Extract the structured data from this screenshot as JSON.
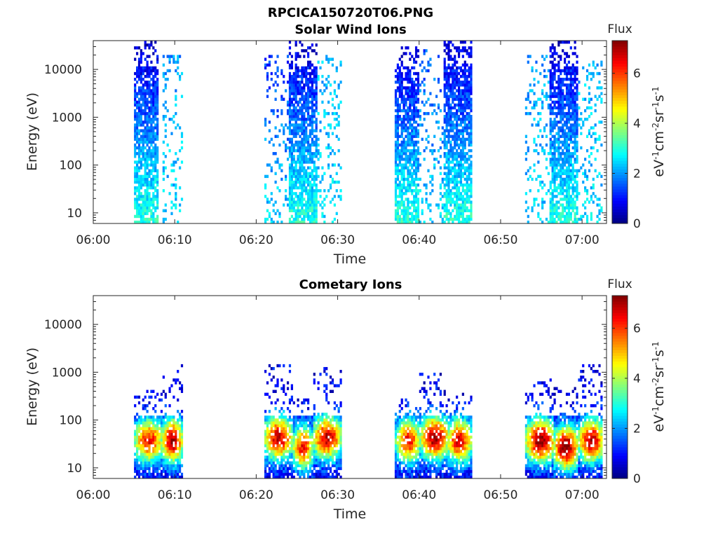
{
  "figure_title": "RPCICA150720T06.PNG",
  "chart_data": [
    {
      "type": "heatmap",
      "title": "Solar Wind Ions",
      "xlabel": "Time",
      "ylabel": "Energy (eV)",
      "x_ticks": [
        "06:00",
        "06:10",
        "06:20",
        "06:30",
        "06:40",
        "06:50",
        "07:00"
      ],
      "x_tick_minutes": [
        0,
        10,
        20,
        30,
        40,
        50,
        60
      ],
      "xlim_minutes": [
        0,
        63
      ],
      "y_scale": "log",
      "y_ticks": [
        "10",
        "100",
        "1000",
        "10000"
      ],
      "y_tick_values": [
        10,
        100,
        1000,
        10000
      ],
      "ylim": [
        6,
        40000
      ],
      "colorbar": {
        "title": "Flux",
        "label": "eV-1cm-2sr-1s-1",
        "range": [
          0,
          7.3
        ],
        "ticks": [
          "0",
          "2",
          "4",
          "6"
        ],
        "tick_values": [
          0,
          2,
          4,
          6
        ],
        "colormap": "jet"
      },
      "bursts": [
        {
          "start_min": 5,
          "end_min": 8,
          "max_energy_ev": 38000,
          "flux_low_energy": 3.0,
          "flux_high_energy": 0.6
        },
        {
          "start_min": 8.5,
          "end_min": 11,
          "max_energy_ev": 20000,
          "flux_low_energy": 2.5,
          "flux_high_energy": 2.0,
          "sparse": true
        },
        {
          "start_min": 21,
          "end_min": 24,
          "max_energy_ev": 20000,
          "flux_low_energy": 2.5,
          "flux_high_energy": 1.2,
          "sparse": true
        },
        {
          "start_min": 24,
          "end_min": 27.5,
          "max_energy_ev": 38000,
          "flux_low_energy": 3.0,
          "flux_high_energy": 0.6
        },
        {
          "start_min": 27.5,
          "end_min": 30.5,
          "max_energy_ev": 20000,
          "flux_low_energy": 2.5,
          "flux_high_energy": 2.2,
          "sparse": true
        },
        {
          "start_min": 37,
          "end_min": 40,
          "max_energy_ev": 30000,
          "flux_low_energy": 3.0,
          "flux_high_energy": 0.6
        },
        {
          "start_min": 40,
          "end_min": 43,
          "max_energy_ev": 25000,
          "flux_low_energy": 2.5,
          "flux_high_energy": 1.5,
          "sparse": true
        },
        {
          "start_min": 43,
          "end_min": 46.5,
          "max_energy_ev": 38000,
          "flux_low_energy": 3.0,
          "flux_high_energy": 0.6
        },
        {
          "start_min": 53,
          "end_min": 56,
          "max_energy_ev": 20000,
          "flux_low_energy": 2.5,
          "flux_high_energy": 2.0,
          "sparse": true
        },
        {
          "start_min": 56,
          "end_min": 59.5,
          "max_energy_ev": 38000,
          "flux_low_energy": 3.0,
          "flux_high_energy": 0.6
        },
        {
          "start_min": 59.5,
          "end_min": 62.5,
          "max_energy_ev": 15000,
          "flux_low_energy": 2.5,
          "flux_high_energy": 2.2,
          "sparse": true
        }
      ]
    },
    {
      "type": "heatmap",
      "title": "Cometary Ions",
      "xlabel": "Time",
      "ylabel": "Energy (eV)",
      "x_ticks": [
        "06:00",
        "06:10",
        "06:20",
        "06:30",
        "06:40",
        "06:50",
        "07:00"
      ],
      "x_tick_minutes": [
        0,
        10,
        20,
        30,
        40,
        50,
        60
      ],
      "xlim_minutes": [
        0,
        63
      ],
      "y_scale": "log",
      "y_ticks": [
        "10",
        "100",
        "1000",
        "10000"
      ],
      "y_tick_values": [
        10,
        100,
        1000,
        10000
      ],
      "ylim": [
        6,
        40000
      ],
      "colorbar": {
        "title": "Flux",
        "label": "eV-1cm-2sr-1s-1",
        "range": [
          0,
          7.3
        ],
        "ticks": [
          "0",
          "2",
          "4",
          "6"
        ],
        "tick_values": [
          0,
          2,
          4,
          6
        ],
        "colormap": "jet"
      },
      "bursts": [
        {
          "start_min": 5,
          "end_min": 8.5,
          "peak_min": 6.7,
          "peak_energy_ev": 35,
          "peak_flux": 5.5,
          "max_energy_ev": 400
        },
        {
          "start_min": 8.5,
          "end_min": 11,
          "peak_min": 9.6,
          "peak_energy_ev": 35,
          "peak_flux": 6.3,
          "max_energy_ev": 1500
        },
        {
          "start_min": 21,
          "end_min": 24.5,
          "peak_min": 22.6,
          "peak_energy_ev": 40,
          "peak_flux": 6.0,
          "max_energy_ev": 1400
        },
        {
          "start_min": 24.5,
          "end_min": 27,
          "peak_min": 25.6,
          "peak_energy_ev": 25,
          "peak_flux": 5.5,
          "max_energy_ev": 300
        },
        {
          "start_min": 27,
          "end_min": 30.5,
          "peak_min": 28.6,
          "peak_energy_ev": 40,
          "peak_flux": 6.0,
          "max_energy_ev": 1200
        },
        {
          "start_min": 37,
          "end_min": 40,
          "peak_min": 38.6,
          "peak_energy_ev": 35,
          "peak_flux": 5.5,
          "max_energy_ev": 300
        },
        {
          "start_min": 40,
          "end_min": 43.5,
          "peak_min": 41.8,
          "peak_energy_ev": 40,
          "peak_flux": 6.3,
          "max_energy_ev": 1000
        },
        {
          "start_min": 43.5,
          "end_min": 46.5,
          "peak_min": 44.8,
          "peak_energy_ev": 35,
          "peak_flux": 5.8,
          "max_energy_ev": 400
        },
        {
          "start_min": 53,
          "end_min": 56.5,
          "peak_min": 54.8,
          "peak_energy_ev": 35,
          "peak_flux": 6.6,
          "max_energy_ev": 700
        },
        {
          "start_min": 56.5,
          "end_min": 59.5,
          "peak_min": 57.9,
          "peak_energy_ev": 25,
          "peak_flux": 6.6,
          "max_energy_ev": 500
        },
        {
          "start_min": 59.5,
          "end_min": 62.5,
          "peak_min": 61.0,
          "peak_energy_ev": 35,
          "peak_flux": 6.2,
          "max_energy_ev": 1400
        }
      ]
    }
  ]
}
